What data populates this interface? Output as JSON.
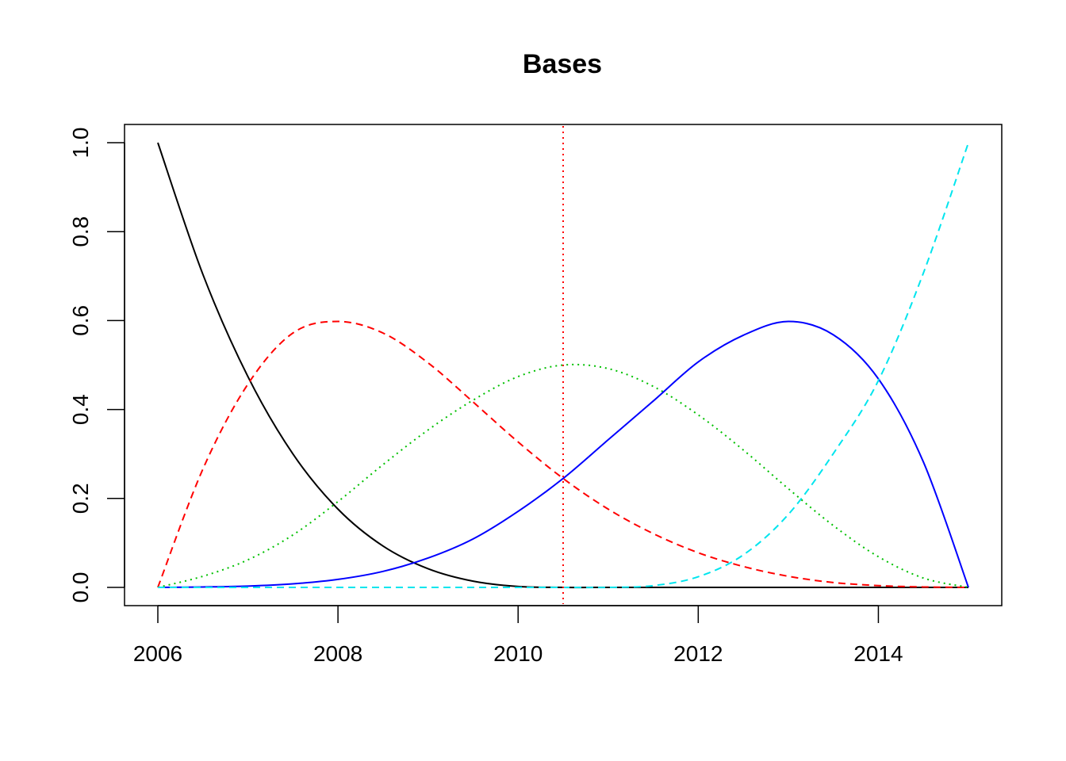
{
  "chart_data": {
    "type": "line",
    "title": "Bases",
    "xlabel": "",
    "ylabel": "",
    "xlim": [
      2006,
      2015
    ],
    "ylim": [
      0,
      1
    ],
    "x_ticks": [
      "2006",
      "2008",
      "2010",
      "2012",
      "2014"
    ],
    "y_ticks": [
      "0.0",
      "0.2",
      "0.4",
      "0.6",
      "0.8",
      "1.0"
    ],
    "x": [
      2006.0,
      2006.5,
      2007.0,
      2007.5,
      2008.0,
      2008.5,
      2009.0,
      2009.5,
      2010.0,
      2010.5,
      2011.0,
      2011.5,
      2012.0,
      2012.5,
      2013.0,
      2013.5,
      2014.0,
      2014.5,
      2015.0
    ],
    "series": [
      {
        "color": "#000000",
        "dash": "solid",
        "values": [
          1.0,
          0.704,
          0.474,
          0.3,
          0.176,
          0.093,
          0.042,
          0.014,
          0.002,
          0.0,
          0.0,
          0.0,
          0.0,
          0.0,
          0.0,
          0.0,
          0.0,
          0.0,
          0.0
        ]
      },
      {
        "color": "#ff0000",
        "dash": "dashed",
        "values": [
          0.0,
          0.266,
          0.457,
          0.572,
          0.598,
          0.572,
          0.505,
          0.417,
          0.327,
          0.245,
          0.176,
          0.121,
          0.078,
          0.047,
          0.025,
          0.011,
          0.004,
          0.001,
          0.0
        ]
      },
      {
        "color": "#00c000",
        "dash": "dotted",
        "values": [
          0.0,
          0.025,
          0.062,
          0.118,
          0.193,
          0.276,
          0.354,
          0.421,
          0.474,
          0.5,
          0.492,
          0.452,
          0.388,
          0.309,
          0.222,
          0.139,
          0.069,
          0.021,
          0.0
        ]
      },
      {
        "color": "#0000ff",
        "dash": "solid",
        "values": [
          0.0,
          0.001,
          0.003,
          0.008,
          0.018,
          0.036,
          0.066,
          0.109,
          0.171,
          0.245,
          0.332,
          0.419,
          0.507,
          0.567,
          0.598,
          0.568,
          0.469,
          0.282,
          0.0
        ]
      },
      {
        "color": "#00e5ee",
        "dash": "dashed",
        "values": [
          0.0,
          0.0,
          0.0,
          0.0,
          0.0,
          0.0,
          0.0,
          0.0,
          0.0,
          0.0,
          0.0,
          0.004,
          0.024,
          0.073,
          0.164,
          0.301,
          0.465,
          0.707,
          1.0
        ]
      }
    ],
    "vlines": [
      {
        "x": 2010.5,
        "color": "#ff0000",
        "dash": "dotted"
      }
    ],
    "grid": false,
    "legend": "none"
  }
}
